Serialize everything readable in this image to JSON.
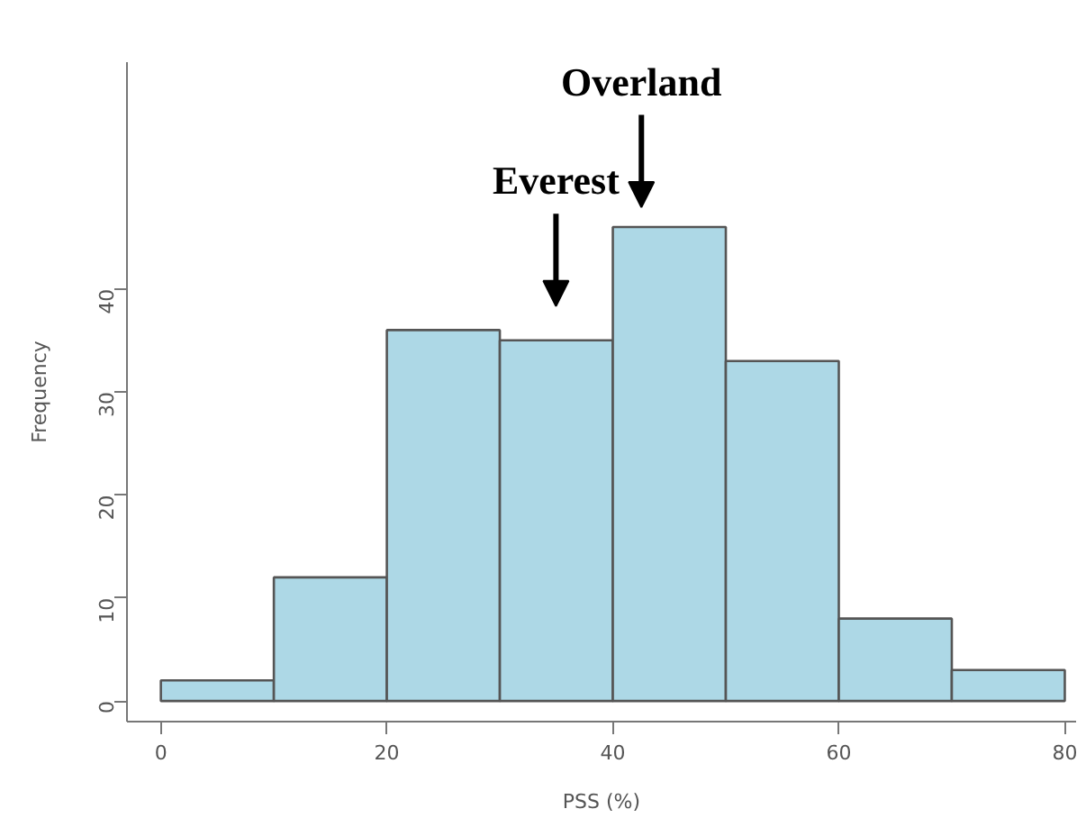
{
  "chart_data": {
    "type": "histogram",
    "xlabel": "PSS (%)",
    "ylabel": "Frequency",
    "bins": [
      0,
      10,
      20,
      30,
      40,
      50,
      60,
      70,
      80
    ],
    "values": [
      2,
      12,
      36,
      35,
      46,
      33,
      8,
      3
    ],
    "color": "#add8e6",
    "xlim": [
      -3,
      81
    ],
    "ylim": [
      -2,
      62
    ],
    "xticks": [
      0,
      20,
      40,
      60,
      80
    ],
    "yticks": [
      0,
      10,
      20,
      30,
      40
    ],
    "annotations": [
      "Everest",
      "Overland"
    ],
    "grid": false
  }
}
